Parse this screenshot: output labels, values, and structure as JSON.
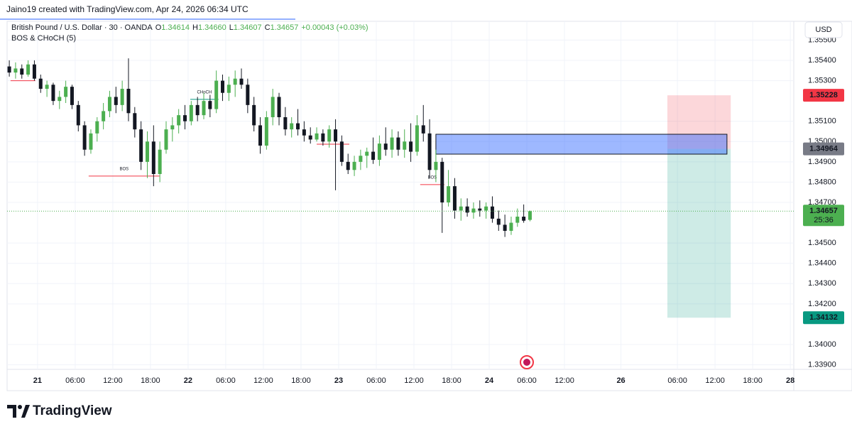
{
  "header": {
    "watermark": "Jaino19 created with TradingView.com, Apr 24, 2026 06:34 UTC"
  },
  "footer": {
    "brand": "TradingView"
  },
  "chart_data": {
    "type": "candlestick",
    "title": "British Pound / U.S. Dollar · 30 · OANDA",
    "indicator": "BOS & CHoCH (5)",
    "legend_values": [
      {
        "key": "O",
        "value": "1.34614"
      },
      {
        "key": "H",
        "value": "1.34660"
      },
      {
        "key": "L",
        "value": "1.34607"
      },
      {
        "key": "C",
        "value": "1.34657"
      }
    ],
    "change": "+0.00043 (+0.03%)",
    "currency": "USD",
    "countdown": "25:36",
    "up_color": "#4caf50",
    "down_color": "#131722",
    "xlim": [
      -9.7,
      241.1
    ],
    "ylim": [
      1.338775,
      1.355925
    ],
    "grid": true,
    "xticks": [
      {
        "value": 0,
        "label": "21"
      },
      {
        "value": 12,
        "label": "06:00"
      },
      {
        "value": 24,
        "label": "12:00"
      },
      {
        "value": 36,
        "label": "18:00"
      },
      {
        "value": 48,
        "label": "22"
      },
      {
        "value": 60,
        "label": "06:00"
      },
      {
        "value": 72,
        "label": "12:00"
      },
      {
        "value": 84,
        "label": "18:00"
      },
      {
        "value": 96,
        "label": "23"
      },
      {
        "value": 108,
        "label": "06:00"
      },
      {
        "value": 120,
        "label": "12:00"
      },
      {
        "value": 132,
        "label": "18:00"
      },
      {
        "value": 144,
        "label": "24"
      },
      {
        "value": 156,
        "label": "06:00"
      },
      {
        "value": 168,
        "label": "12:00"
      },
      {
        "value": 186,
        "label": "26"
      },
      {
        "value": 204,
        "label": "06:00"
      },
      {
        "value": 216,
        "label": "12:00"
      },
      {
        "value": 228,
        "label": "18:00"
      },
      {
        "value": 240,
        "label": "28"
      }
    ],
    "yticks": [
      {
        "value": 1.339,
        "label": "1.33900"
      },
      {
        "value": 1.34,
        "label": "1.34000"
      },
      {
        "value": 1.342,
        "label": "1.34200"
      },
      {
        "value": 1.343,
        "label": "1.34300"
      },
      {
        "value": 1.344,
        "label": "1.34400"
      },
      {
        "value": 1.345,
        "label": "1.34500"
      },
      {
        "value": 1.347,
        "label": "1.34700"
      },
      {
        "value": 1.348,
        "label": "1.34800"
      },
      {
        "value": 1.349,
        "label": "1.34900"
      },
      {
        "value": 1.35,
        "label": "1.35000"
      },
      {
        "value": 1.351,
        "label": "1.35100"
      },
      {
        "value": 1.353,
        "label": "1.35300"
      },
      {
        "value": 1.354,
        "label": "1.35400"
      },
      {
        "value": 1.355,
        "label": "1.35500"
      }
    ],
    "x": [
      -9,
      -7,
      -5,
      -3,
      -1,
      1,
      3,
      5,
      7,
      9,
      11,
      13,
      15,
      17,
      19,
      21,
      23,
      25,
      27,
      29,
      31,
      33,
      35,
      37,
      39,
      41,
      43,
      45,
      47,
      49,
      51,
      53,
      55,
      57,
      59,
      61,
      63,
      65,
      67,
      69,
      71,
      73,
      75,
      77,
      79,
      81,
      83,
      85,
      87,
      89,
      91,
      93,
      95,
      97,
      99,
      101,
      103,
      105,
      107,
      109,
      111,
      113,
      115,
      117,
      119,
      121,
      123,
      125,
      127,
      129,
      131,
      133,
      135,
      137,
      139,
      141,
      143,
      145,
      147,
      149,
      151,
      153,
      155,
      157
    ],
    "open": [
      1.3537,
      1.3534,
      1.3536,
      1.3533,
      1.3538,
      1.3531,
      1.3526,
      1.3528,
      1.352,
      1.3522,
      1.3527,
      1.3518,
      1.3508,
      1.3496,
      1.3504,
      1.351,
      1.3515,
      1.3522,
      1.3518,
      1.3526,
      1.3514,
      1.3506,
      1.349,
      1.35,
      1.3484,
      1.3496,
      1.3506,
      1.3508,
      1.3513,
      1.351,
      1.3518,
      1.3513,
      1.352,
      1.3516,
      1.353,
      1.3524,
      1.3528,
      1.3531,
      1.3528,
      1.3518,
      1.3508,
      1.3498,
      1.3512,
      1.3522,
      1.3512,
      1.3506,
      1.3509,
      1.3506,
      1.3503,
      1.3501,
      1.3504,
      1.35,
      1.3506,
      1.35,
      1.349,
      1.3486,
      1.349,
      1.3493,
      1.3495,
      1.3491,
      1.3499,
      1.3496,
      1.3502,
      1.3496,
      1.35,
      1.3495,
      1.3508,
      1.3504,
      1.3486,
      1.349,
      1.347,
      1.3478,
      1.3466,
      1.3468,
      1.3465,
      1.3467,
      1.3466,
      1.3468,
      1.3462,
      1.3459,
      1.3456,
      1.346,
      1.3463,
      1.34614
    ],
    "high": [
      1.354,
      1.3539,
      1.3538,
      1.354,
      1.354,
      1.3533,
      1.353,
      1.3529,
      1.3525,
      1.353,
      1.3528,
      1.352,
      1.351,
      1.3506,
      1.3512,
      1.3519,
      1.3525,
      1.3527,
      1.353,
      1.3541,
      1.3517,
      1.351,
      1.3505,
      1.3508,
      1.35,
      1.351,
      1.3512,
      1.3516,
      1.3518,
      1.352,
      1.3522,
      1.3524,
      1.3523,
      1.3535,
      1.3533,
      1.3532,
      1.3535,
      1.3536,
      1.3531,
      1.3522,
      1.3512,
      1.3515,
      1.3526,
      1.3524,
      1.3517,
      1.3512,
      1.3516,
      1.351,
      1.3507,
      1.3507,
      1.3506,
      1.3508,
      1.3511,
      1.3503,
      1.3494,
      1.3493,
      1.3496,
      1.3497,
      1.3502,
      1.3503,
      1.3507,
      1.3506,
      1.3505,
      1.3506,
      1.3509,
      1.3513,
      1.3518,
      1.3511,
      1.3496,
      1.3492,
      1.3486,
      1.3482,
      1.3472,
      1.3472,
      1.347,
      1.3471,
      1.347,
      1.3473,
      1.3466,
      1.3464,
      1.3463,
      1.3467,
      1.3469,
      1.3466
    ],
    "low": [
      1.3532,
      1.3531,
      1.3531,
      1.3532,
      1.353,
      1.3524,
      1.3522,
      1.3518,
      1.3516,
      1.3519,
      1.3516,
      1.3505,
      1.3493,
      1.3494,
      1.35,
      1.3506,
      1.3512,
      1.3514,
      1.3515,
      1.351,
      1.3502,
      1.3486,
      1.3482,
      1.3478,
      1.348,
      1.3494,
      1.35,
      1.3504,
      1.3506,
      1.3508,
      1.351,
      1.3511,
      1.3512,
      1.3514,
      1.352,
      1.352,
      1.3522,
      1.3526,
      1.3514,
      1.3505,
      1.3494,
      1.3496,
      1.3508,
      1.3508,
      1.3503,
      1.3502,
      1.3503,
      1.35,
      1.3499,
      1.35,
      1.3498,
      1.3497,
      1.3476,
      1.3488,
      1.3484,
      1.3483,
      1.3486,
      1.3487,
      1.3489,
      1.3488,
      1.3493,
      1.3492,
      1.3493,
      1.3492,
      1.349,
      1.3493,
      1.35,
      1.3482,
      1.348,
      1.3455,
      1.3468,
      1.3462,
      1.3461,
      1.3463,
      1.3462,
      1.3463,
      1.3462,
      1.346,
      1.3456,
      1.3453,
      1.3454,
      1.3458,
      1.346,
      1.34607
    ],
    "close": [
      1.3534,
      1.3536,
      1.3533,
      1.3538,
      1.3531,
      1.3526,
      1.3528,
      1.352,
      1.3522,
      1.3527,
      1.3518,
      1.3508,
      1.3496,
      1.3504,
      1.351,
      1.3515,
      1.3522,
      1.3518,
      1.3526,
      1.3514,
      1.3506,
      1.349,
      1.35,
      1.3484,
      1.3496,
      1.3506,
      1.3508,
      1.3513,
      1.351,
      1.3518,
      1.3513,
      1.352,
      1.3516,
      1.353,
      1.3524,
      1.3528,
      1.3531,
      1.3528,
      1.3518,
      1.3508,
      1.3498,
      1.3512,
      1.3522,
      1.3512,
      1.3506,
      1.3509,
      1.3506,
      1.3503,
      1.3501,
      1.3504,
      1.35,
      1.3506,
      1.35,
      1.349,
      1.3486,
      1.349,
      1.3493,
      1.3495,
      1.3491,
      1.3499,
      1.3496,
      1.3502,
      1.3496,
      1.35,
      1.3495,
      1.3508,
      1.3504,
      1.3486,
      1.349,
      1.347,
      1.3478,
      1.3466,
      1.3468,
      1.3465,
      1.3467,
      1.3466,
      1.3468,
      1.3462,
      1.3459,
      1.3456,
      1.346,
      1.3463,
      1.3461,
      1.34657
    ],
    "structures": [
      {
        "price": 1.353,
        "x1": -8.6,
        "x2": -0.7,
        "color": "#f23645"
      },
      {
        "price": 1.3483,
        "x1": 16.3,
        "x2": 38.9,
        "color": "#f23645",
        "label": "BOS"
      },
      {
        "price": 1.35208,
        "x1": 48.7,
        "x2": 57.7,
        "color": "#089981",
        "label": "CHoCH"
      },
      {
        "price": 1.34987,
        "x1": 89,
        "x2": 99.4,
        "color": "#f23645"
      },
      {
        "price": 1.34788,
        "x1": 122,
        "x2": 129.7,
        "color": "#f23645",
        "label": "BOS"
      }
    ],
    "order_block": {
      "top": 1.35036,
      "bottom": 1.34938,
      "x1": 127,
      "x2": 219.8,
      "color": "#2962ff"
    },
    "position": {
      "stop": 1.35228,
      "entry": 1.34964,
      "target": 1.34132,
      "x1": 200.8,
      "x2": 221,
      "stop_color": "#f23645",
      "entry_color": "#787b86",
      "target_color": "#089981"
    }
  }
}
